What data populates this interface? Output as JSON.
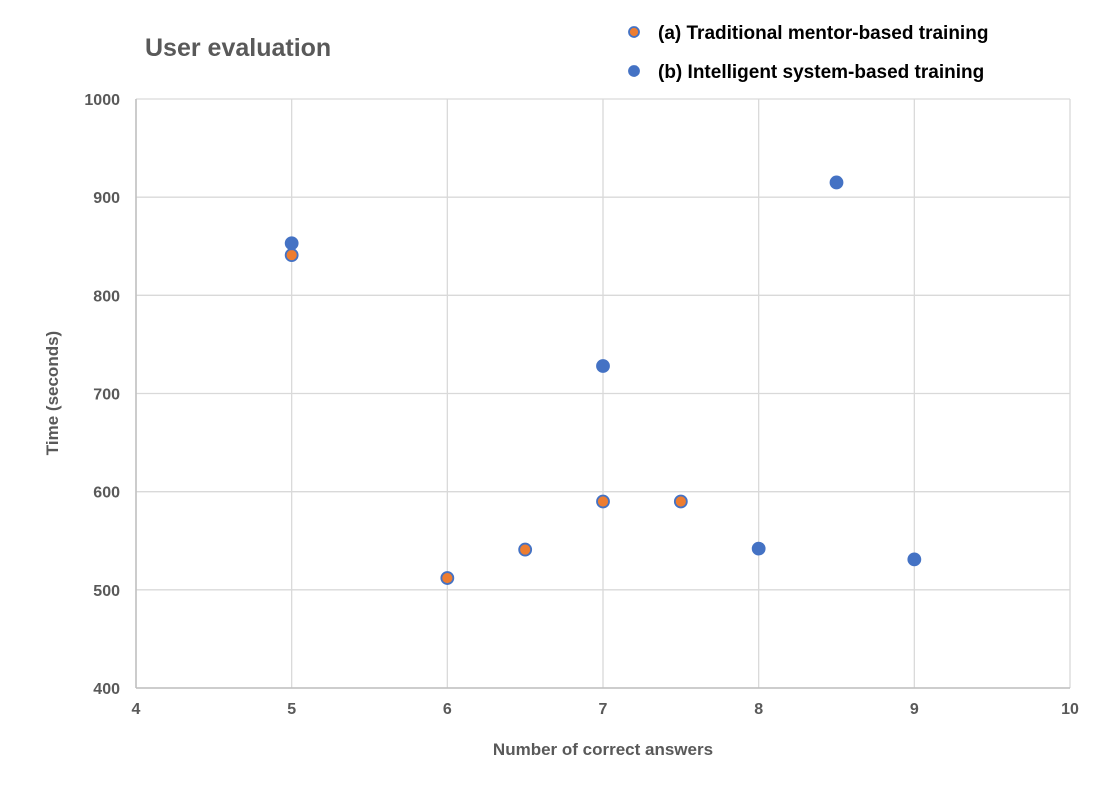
{
  "chart_data": {
    "type": "scatter",
    "title": "User evaluation",
    "xlabel": "Number of correct answers",
    "ylabel": "Time (seconds)",
    "xlim": [
      4,
      10
    ],
    "ylim": [
      400,
      1000
    ],
    "xticks": [
      4,
      5,
      6,
      7,
      8,
      9,
      10
    ],
    "yticks": [
      400,
      500,
      600,
      700,
      800,
      900,
      1000
    ],
    "grid": true,
    "legend_position": "top-right",
    "series": [
      {
        "name": "(a) Traditional mentor-based training",
        "fill": "#ED7D31",
        "stroke": "#4472C4",
        "points": [
          {
            "x": 5,
            "y": 841
          },
          {
            "x": 6,
            "y": 512
          },
          {
            "x": 6.5,
            "y": 541
          },
          {
            "x": 7,
            "y": 590
          },
          {
            "x": 7.5,
            "y": 590
          }
        ]
      },
      {
        "name": "(b) Intelligent system-based training",
        "fill": "#4472C4",
        "stroke": "#4472C4",
        "points": [
          {
            "x": 5,
            "y": 853
          },
          {
            "x": 7,
            "y": 728
          },
          {
            "x": 8,
            "y": 542
          },
          {
            "x": 8.5,
            "y": 915
          },
          {
            "x": 9,
            "y": 531
          }
        ]
      }
    ]
  }
}
